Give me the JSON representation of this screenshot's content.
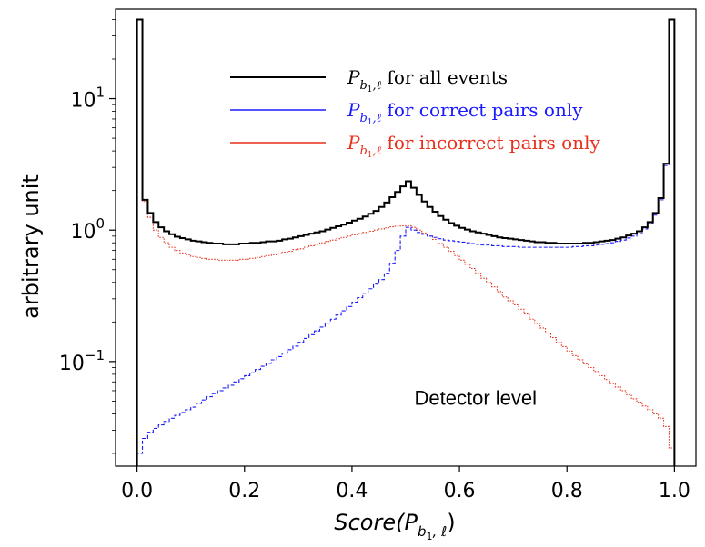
{
  "chart_data": {
    "type": "line",
    "title": "",
    "xlabel": "Score(P_{b1,ℓ})",
    "xlabel_parts": {
      "main": "Score(",
      "sym": "P",
      "sub1": "b",
      "sub2": "1",
      "sub3": ", ℓ",
      "close": ")"
    },
    "ylabel": "arbitrary unit",
    "xscale": "linear",
    "yscale": "log",
    "xlim": [
      -0.04,
      1.04
    ],
    "ylim": [
      0.016,
      48
    ],
    "xticks": [
      0.0,
      0.2,
      0.4,
      0.6,
      0.8,
      1.0
    ],
    "xtick_labels": [
      "0.0",
      "0.2",
      "0.4",
      "0.6",
      "0.8",
      "1.0"
    ],
    "yticks": [
      {
        "value": 0.1,
        "base": "10",
        "exp": "−1"
      },
      {
        "value": 1,
        "base": "10",
        "exp": "0"
      },
      {
        "value": 10,
        "base": "10",
        "exp": "1"
      }
    ],
    "annotation": "Detector level",
    "legend_location": "top-center",
    "bins": {
      "start": 0.0,
      "end": 1.0,
      "count": 100
    },
    "series": [
      {
        "name": "P_{b1,ℓ} for all events",
        "legend": {
          "sym": "P",
          "sub": "b",
          "subsub": "1",
          "subrest": ",ℓ",
          "text": "for all events"
        },
        "color": "#000000",
        "style": "solid",
        "values": [
          40,
          1.7,
          1.35,
          1.15,
          1.05,
          0.98,
          0.93,
          0.89,
          0.87,
          0.85,
          0.83,
          0.82,
          0.81,
          0.8,
          0.79,
          0.79,
          0.78,
          0.78,
          0.78,
          0.79,
          0.79,
          0.8,
          0.8,
          0.81,
          0.82,
          0.82,
          0.83,
          0.85,
          0.86,
          0.88,
          0.9,
          0.92,
          0.94,
          0.96,
          0.98,
          1.01,
          1.04,
          1.07,
          1.1,
          1.14,
          1.18,
          1.22,
          1.27,
          1.33,
          1.4,
          1.5,
          1.62,
          1.78,
          1.95,
          2.15,
          2.35,
          2.1,
          1.85,
          1.65,
          1.5,
          1.38,
          1.28,
          1.2,
          1.13,
          1.08,
          1.04,
          1.01,
          0.98,
          0.96,
          0.94,
          0.92,
          0.9,
          0.88,
          0.87,
          0.86,
          0.85,
          0.84,
          0.83,
          0.82,
          0.81,
          0.81,
          0.8,
          0.8,
          0.79,
          0.79,
          0.79,
          0.79,
          0.79,
          0.8,
          0.8,
          0.81,
          0.82,
          0.83,
          0.84,
          0.86,
          0.88,
          0.91,
          0.94,
          0.98,
          1.05,
          1.15,
          1.35,
          1.75,
          3.2,
          40
        ]
      },
      {
        "name": "P_{b1,ℓ} for correct pairs only",
        "legend": {
          "sym": "P",
          "sub": "b",
          "subsub": "1",
          "subrest": ",ℓ",
          "text": "for correct pairs only"
        },
        "color": "#1a1aff",
        "style": "dashed",
        "values": [
          0.02,
          0.026,
          0.029,
          0.031,
          0.033,
          0.035,
          0.037,
          0.039,
          0.041,
          0.043,
          0.045,
          0.048,
          0.051,
          0.054,
          0.057,
          0.06,
          0.063,
          0.066,
          0.07,
          0.074,
          0.078,
          0.082,
          0.087,
          0.092,
          0.097,
          0.103,
          0.109,
          0.116,
          0.123,
          0.131,
          0.14,
          0.15,
          0.16,
          0.171,
          0.183,
          0.196,
          0.21,
          0.226,
          0.243,
          0.262,
          0.283,
          0.306,
          0.331,
          0.358,
          0.388,
          0.42,
          0.47,
          0.56,
          0.7,
          0.9,
          1.05,
          1.0,
          0.96,
          0.93,
          0.9,
          0.88,
          0.86,
          0.84,
          0.83,
          0.82,
          0.81,
          0.8,
          0.79,
          0.78,
          0.77,
          0.77,
          0.76,
          0.76,
          0.75,
          0.75,
          0.75,
          0.74,
          0.74,
          0.74,
          0.74,
          0.74,
          0.74,
          0.74,
          0.74,
          0.74,
          0.74,
          0.75,
          0.75,
          0.76,
          0.76,
          0.77,
          0.78,
          0.79,
          0.8,
          0.82,
          0.84,
          0.87,
          0.9,
          0.94,
          1.02,
          1.12,
          1.3,
          1.7,
          3.1,
          40
        ]
      },
      {
        "name": "P_{b1,ℓ} for incorrect pairs only",
        "legend": {
          "sym": "P",
          "sub": "b",
          "subsub": "1",
          "subrest": ",ℓ",
          "text": "for incorrect pairs only"
        },
        "color": "#e8301c",
        "style": "dotted",
        "values": [
          40,
          1.65,
          1.25,
          1.0,
          0.88,
          0.8,
          0.74,
          0.7,
          0.67,
          0.65,
          0.63,
          0.62,
          0.61,
          0.6,
          0.6,
          0.59,
          0.59,
          0.59,
          0.59,
          0.6,
          0.6,
          0.61,
          0.62,
          0.63,
          0.64,
          0.65,
          0.66,
          0.68,
          0.69,
          0.71,
          0.72,
          0.74,
          0.76,
          0.78,
          0.8,
          0.82,
          0.84,
          0.86,
          0.88,
          0.9,
          0.92,
          0.94,
          0.96,
          0.98,
          1.0,
          1.02,
          1.04,
          1.06,
          1.07,
          1.08,
          1.08,
          1.05,
          1.0,
          0.95,
          0.9,
          0.85,
          0.79,
          0.74,
          0.69,
          0.64,
          0.59,
          0.55,
          0.51,
          0.47,
          0.43,
          0.4,
          0.37,
          0.34,
          0.31,
          0.29,
          0.27,
          0.25,
          0.23,
          0.21,
          0.195,
          0.18,
          0.165,
          0.152,
          0.14,
          0.13,
          0.12,
          0.111,
          0.103,
          0.096,
          0.09,
          0.084,
          0.078,
          0.073,
          0.068,
          0.064,
          0.06,
          0.056,
          0.052,
          0.049,
          0.046,
          0.043,
          0.04,
          0.037,
          0.032,
          0.022
        ]
      }
    ]
  }
}
